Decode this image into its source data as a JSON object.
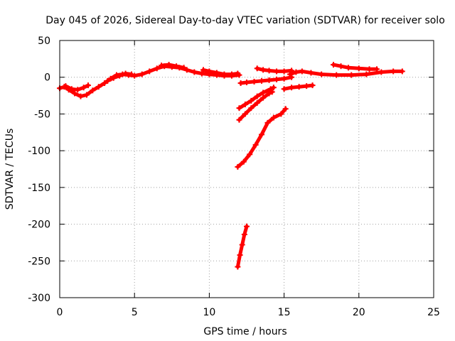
{
  "chart_data": {
    "type": "scatter",
    "title": "Day 045 of 2026, Sidereal Day-to-day VTEC variation (SDTVAR) for receiver solo",
    "xlabel": "GPS time / hours",
    "ylabel": "SDTVAR / TECUs",
    "xlim": [
      0,
      25
    ],
    "ylim": [
      -300,
      50
    ],
    "xticks": [
      0,
      5,
      10,
      15,
      20,
      25
    ],
    "yticks": [
      50,
      0,
      -50,
      -100,
      -150,
      -200,
      -250,
      -300
    ],
    "grid": true,
    "color": "#ff0000",
    "series": [
      {
        "points": [
          [
            0,
            -15
          ],
          [
            0.3,
            -13
          ],
          [
            0.6,
            -17
          ],
          [
            1,
            -22
          ],
          [
            1.4,
            -26
          ],
          [
            1.8,
            -24
          ],
          [
            2.2,
            -18
          ],
          [
            2.6,
            -13
          ],
          [
            3,
            -8
          ],
          [
            3.4,
            -2
          ],
          [
            3.8,
            3
          ],
          [
            4.2,
            4
          ],
          [
            4.6,
            3
          ],
          [
            5,
            2
          ],
          [
            5.5,
            4
          ],
          [
            6,
            8
          ],
          [
            6.5,
            12
          ],
          [
            7,
            15
          ],
          [
            7.5,
            14
          ],
          [
            8,
            13
          ],
          [
            8.5,
            10
          ],
          [
            9,
            7
          ],
          [
            9.5,
            5
          ],
          [
            10,
            4
          ],
          [
            10.5,
            3
          ],
          [
            11,
            2
          ],
          [
            11.5,
            2
          ],
          [
            12,
            3
          ]
        ]
      },
      {
        "points": [
          [
            0.4,
            -12
          ],
          [
            0.8,
            -16
          ],
          [
            1.2,
            -17
          ],
          [
            1.6,
            -14
          ],
          [
            1.9,
            -11
          ]
        ]
      },
      {
        "points": [
          [
            3.2,
            -5
          ],
          [
            3.6,
            -1
          ],
          [
            4,
            2
          ],
          [
            4.4,
            5
          ],
          [
            4.8,
            4
          ]
        ]
      },
      {
        "points": [
          [
            6.8,
            16
          ],
          [
            7.3,
            17
          ],
          [
            7.8,
            15
          ],
          [
            8.3,
            13
          ]
        ]
      },
      {
        "points": [
          [
            9.6,
            10
          ],
          [
            10,
            8
          ],
          [
            10.5,
            6
          ],
          [
            11,
            4
          ],
          [
            11.5,
            4
          ],
          [
            11.9,
            5
          ]
        ]
      },
      {
        "points": [
          [
            12.1,
            -8
          ],
          [
            12.5,
            -7
          ],
          [
            13,
            -6
          ],
          [
            13.5,
            -5
          ],
          [
            14,
            -4
          ],
          [
            14.5,
            -3
          ],
          [
            15,
            -2
          ],
          [
            15.5,
            0
          ]
        ]
      },
      {
        "points": [
          [
            13.2,
            12
          ],
          [
            13.6,
            10
          ],
          [
            14,
            9
          ],
          [
            14.5,
            8
          ],
          [
            15,
            8
          ],
          [
            15.5,
            9
          ]
        ]
      },
      {
        "points": [
          [
            15.4,
            4
          ],
          [
            15.8,
            7
          ],
          [
            16.2,
            8
          ],
          [
            16.8,
            6
          ],
          [
            17.5,
            4
          ],
          [
            18.5,
            3
          ],
          [
            19.5,
            3
          ],
          [
            20.5,
            4
          ],
          [
            21.5,
            7
          ],
          [
            22.3,
            8
          ],
          [
            22.9,
            8
          ]
        ]
      },
      {
        "points": [
          [
            18.3,
            17
          ],
          [
            18.8,
            15
          ],
          [
            19.3,
            13
          ],
          [
            20,
            12
          ],
          [
            20.7,
            11
          ],
          [
            21.2,
            11
          ]
        ]
      },
      {
        "points": [
          [
            15,
            -16
          ],
          [
            15.5,
            -14
          ],
          [
            16,
            -13
          ],
          [
            16.5,
            -12
          ],
          [
            16.9,
            -11
          ]
        ]
      },
      {
        "points": [
          [
            12,
            -42
          ],
          [
            12.4,
            -37
          ],
          [
            12.8,
            -32
          ],
          [
            13.2,
            -26
          ],
          [
            13.6,
            -21
          ],
          [
            14.1,
            -16
          ],
          [
            14.3,
            -14
          ]
        ]
      },
      {
        "points": [
          [
            12,
            -58
          ],
          [
            12.4,
            -50
          ],
          [
            12.8,
            -42
          ],
          [
            13.2,
            -35
          ],
          [
            13.6,
            -28
          ],
          [
            14,
            -22
          ],
          [
            14.2,
            -20
          ]
        ]
      },
      {
        "points": [
          [
            11.9,
            -122
          ],
          [
            12.3,
            -115
          ],
          [
            12.7,
            -105
          ],
          [
            13.1,
            -92
          ],
          [
            13.5,
            -78
          ],
          [
            13.9,
            -62
          ],
          [
            14.3,
            -55
          ],
          [
            14.8,
            -50
          ],
          [
            15.1,
            -43
          ]
        ]
      },
      {
        "points": [
          [
            11.9,
            -258
          ],
          [
            12.05,
            -242
          ],
          [
            12.2,
            -228
          ],
          [
            12.35,
            -214
          ],
          [
            12.5,
            -203
          ]
        ]
      }
    ]
  }
}
